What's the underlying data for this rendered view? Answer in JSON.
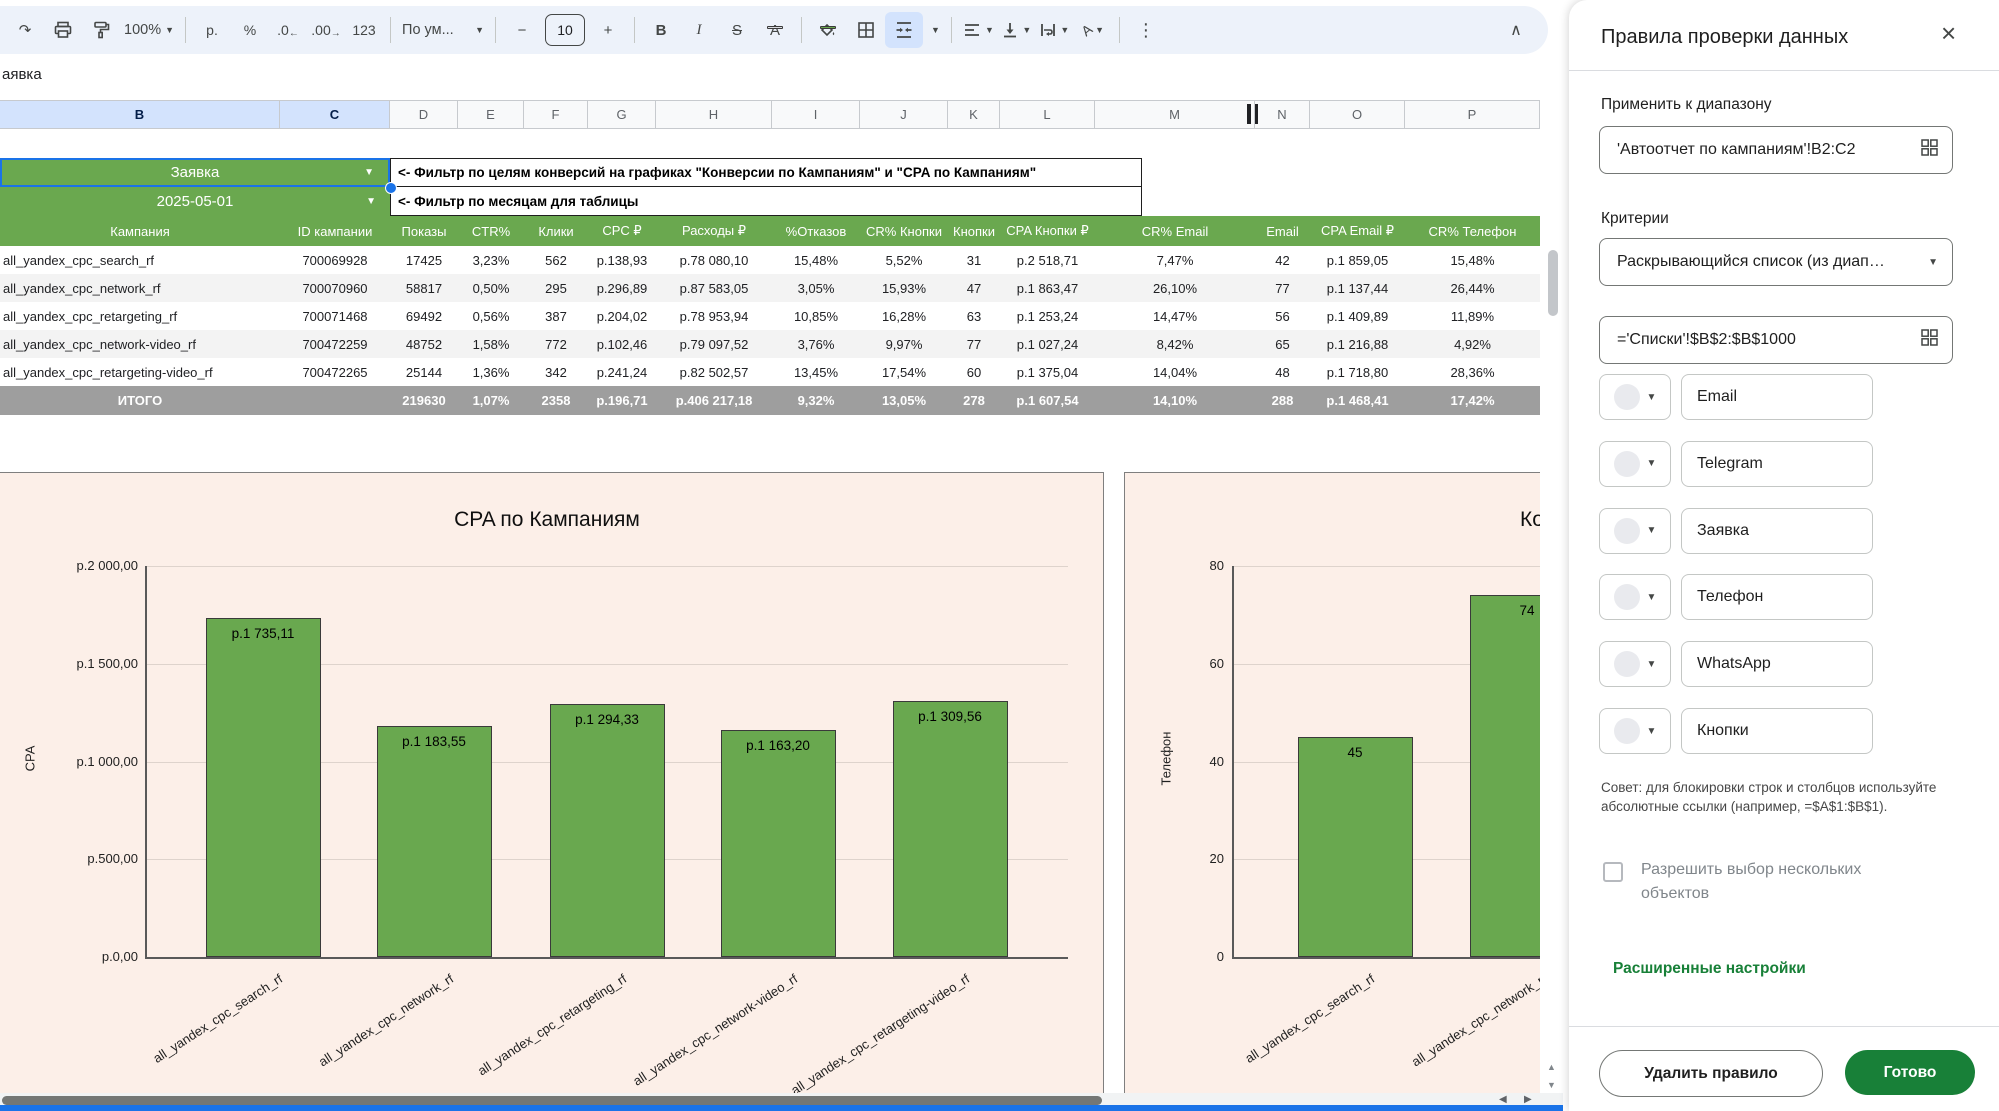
{
  "colors": {
    "accent_green": "#6aa84f",
    "bar_green": "#69a84f",
    "chart_bg": "#fcefe8",
    "done_green": "#188038",
    "selection_blue": "#1a73e8",
    "total_gray": "#9e9e9e"
  },
  "toolbar": {
    "zoom": "100%",
    "currency": "р.",
    "percent": "%",
    "dec_decimal": ".0",
    "inc_decimal": ".00",
    "more_formats": "123",
    "font_name": "По ум...",
    "font_size": "10",
    "minus": "−",
    "plus": "+",
    "bold": "B",
    "italic": "I",
    "strikethrough": "S",
    "text_color": "A",
    "more": "⋮",
    "collapse": "∧"
  },
  "name_box": "аявка",
  "column_letters": [
    "B",
    "C",
    "D",
    "E",
    "F",
    "G",
    "H",
    "I",
    "J",
    "K",
    "L",
    "M",
    "N",
    "O",
    "P"
  ],
  "filters": {
    "goal_value": "Заявка",
    "goal_note": "<- Фильтр по целям конверсий на графиках \"Конверсии по Кампаниям\" и \"CPA по Кампаниям\"",
    "month_value": "2025-05-01",
    "month_note": "<- Фильтр по месяцам для таблицы"
  },
  "table": {
    "headers": [
      "Кампания",
      "ID кампании",
      "Показы",
      "CTR%",
      "Клики",
      "CPC ₽",
      "Расходы ₽",
      "%Отказов",
      "CR% Кнопки",
      "Кнопки",
      "CPA Кнопки ₽",
      "CR% Email",
      "Email",
      "CPA Email ₽",
      "CR% Телефон"
    ],
    "rows": [
      [
        "all_yandex_cpc_search_rf",
        "700069928",
        "17425",
        "3,23%",
        "562",
        "р.138,93",
        "р.78 080,10",
        "15,48%",
        "5,52%",
        "31",
        "р.2 518,71",
        "7,47%",
        "42",
        "р.1 859,05",
        "15,48%"
      ],
      [
        "all_yandex_cpc_network_rf",
        "700070960",
        "58817",
        "0,50%",
        "295",
        "р.296,89",
        "р.87 583,05",
        "3,05%",
        "15,93%",
        "47",
        "р.1 863,47",
        "26,10%",
        "77",
        "р.1 137,44",
        "26,44%"
      ],
      [
        "all_yandex_cpc_retargeting_rf",
        "700071468",
        "69492",
        "0,56%",
        "387",
        "р.204,02",
        "р.78 953,94",
        "10,85%",
        "16,28%",
        "63",
        "р.1 253,24",
        "14,47%",
        "56",
        "р.1 409,89",
        "11,89%"
      ],
      [
        "all_yandex_cpc_network-video_rf",
        "700472259",
        "48752",
        "1,58%",
        "772",
        "р.102,46",
        "р.79 097,52",
        "3,76%",
        "9,97%",
        "77",
        "р.1 027,24",
        "8,42%",
        "65",
        "р.1 216,88",
        "4,92%"
      ],
      [
        "all_yandex_cpc_retargeting-video_rf",
        "700472265",
        "25144",
        "1,36%",
        "342",
        "р.241,24",
        "р.82 502,57",
        "13,45%",
        "17,54%",
        "60",
        "р.1 375,04",
        "14,04%",
        "48",
        "р.1 718,80",
        "28,36%"
      ]
    ],
    "total_row": [
      "ИТОГО",
      "",
      "219630",
      "1,07%",
      "2358",
      "р.196,71",
      "р.406 217,18",
      "9,32%",
      "13,05%",
      "278",
      "р.1 607,54",
      "14,10%",
      "288",
      "р.1 468,41",
      "17,42%"
    ]
  },
  "chart_data": [
    {
      "type": "bar",
      "title": "CPA по Кампаниям",
      "ylabel": "CPA",
      "xlabel": "",
      "categories": [
        "all_yandex_cpc_search_rf",
        "all_yandex_cpc_network_rf",
        "all_yandex_cpc_retargeting_rf",
        "all_yandex_cpc_network-video_rf",
        "all_yandex_cpc_retargeting-video_rf"
      ],
      "values": [
        1735.11,
        1183.55,
        1294.33,
        1163.2,
        1309.56
      ],
      "value_labels": [
        "р.1 735,11",
        "р.1 183,55",
        "р.1 294,33",
        "р.1 163,20",
        "р.1 309,56"
      ],
      "ylim": [
        0,
        2000
      ],
      "ytick_labels": [
        "р.0,00",
        "р.500,00",
        "р.1 000,00",
        "р.1 500,00",
        "р.2 000,00"
      ],
      "grid": true,
      "legend": "none",
      "bar_color": "#69a84f",
      "background": "#fcefe8"
    },
    {
      "type": "bar",
      "title": "Ко",
      "ylabel": "Телефон",
      "xlabel": "",
      "categories": [
        "all_yandex_cpc_search_rf",
        "all_yandex_cpc_network_rf"
      ],
      "values": [
        45,
        74
      ],
      "value_labels": [
        "45",
        "74"
      ],
      "ylim": [
        0,
        80
      ],
      "ytick_labels": [
        "0",
        "20",
        "40",
        "60",
        "80"
      ],
      "grid": true,
      "legend": "none",
      "bar_color": "#69a84f",
      "background": "#fcefe8"
    }
  ],
  "panel": {
    "title": "Правила проверки данных",
    "close": "×",
    "apply_label": "Применить к диапазону",
    "range_value": "'Автоотчет по кампаниям'!B2:C2",
    "criteria_label": "Критерии",
    "criteria_value": "Раскрывающийся список (из диап…",
    "source_formula": "='Списки'!$B$2:$B$1000",
    "options": [
      "Email",
      "Telegram",
      "Заявка",
      "Телефон",
      "WhatsApp",
      "Кнопки"
    ],
    "hint": "Совет: для блокировки строк и столбцов используйте абсолютные ссылки (например, =$A$1:$B$1).",
    "multi_select_label": "Разрешить выбор нескольких объектов",
    "advanced_label": "Расширенные настройки",
    "delete_label": "Удалить правило",
    "done_label": "Готово"
  }
}
